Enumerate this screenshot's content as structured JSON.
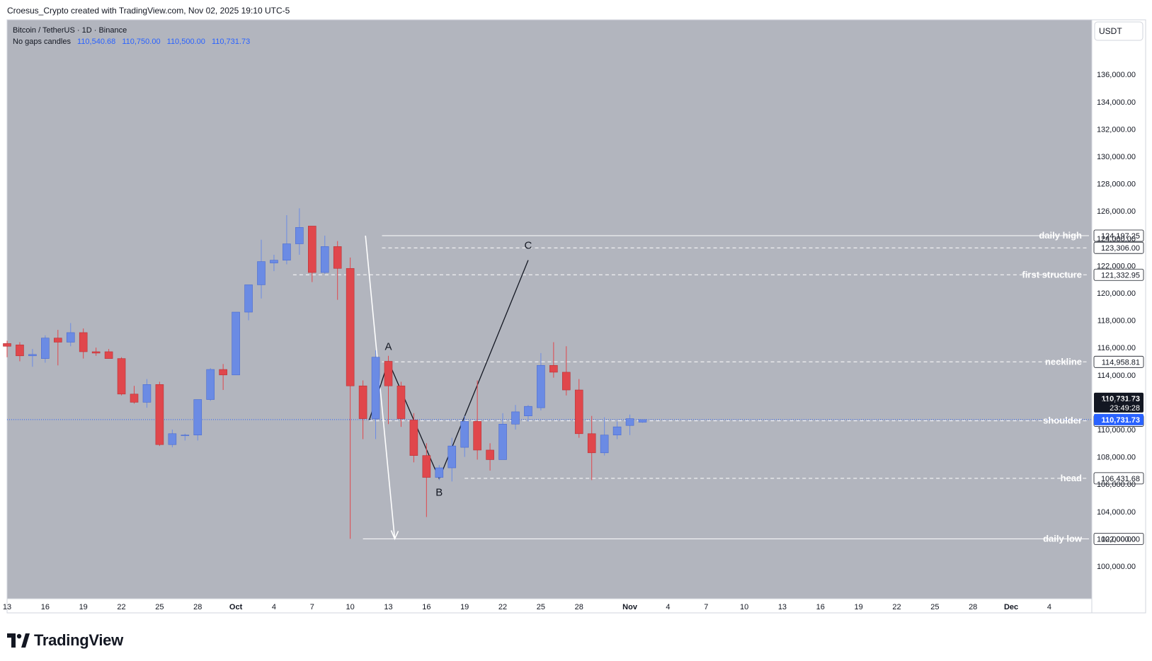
{
  "header": {
    "attribution": "Croesus_Crypto created with TradingView.com, Nov 02, 2025 19:10 UTC-5"
  },
  "legend": {
    "symbol": "Bitcoin / TetherUS · 1D · Binance",
    "candle_type": "No gaps candles",
    "ohlc": [
      "110,540.68",
      "110,750.00",
      "110,500.00",
      "110,731.73"
    ]
  },
  "price_axis": {
    "currency": "USDT",
    "ticks": [
      "100,000.00",
      "102,000.00",
      "104,000.00",
      "106,000.00",
      "108,000.00",
      "110,000.00",
      "112,000.00",
      "114,000.00",
      "116,000.00",
      "118,000.00",
      "120,000.00",
      "122,000.00",
      "124,000.00",
      "126,000.00",
      "128,000.00",
      "130,000.00",
      "132,000.00",
      "134,000.00",
      "136,000.00"
    ],
    "current_price": "110,731.73",
    "countdown": "23:49:28"
  },
  "time_axis": {
    "ticks": [
      "13",
      "16",
      "19",
      "22",
      "25",
      "28",
      "Oct",
      "4",
      "7",
      "10",
      "13",
      "16",
      "19",
      "22",
      "25",
      "28",
      "Nov",
      "4",
      "7",
      "10",
      "13",
      "16",
      "19",
      "22",
      "25",
      "28",
      "Dec",
      "4"
    ]
  },
  "branding": {
    "name": "TradingView"
  },
  "colors": {
    "background": "#b2b5be",
    "up": "#6b8be4",
    "down": "#e0474c",
    "price_line": "#2962ff"
  },
  "chart_data": {
    "type": "candlestick",
    "title": "Bitcoin / TetherUS · 1D · Binance",
    "ylim": [
      98000,
      138000
    ],
    "start_date": "2025-09-13",
    "candles": [
      {
        "o": 116300,
        "h": 116500,
        "l": 115300,
        "c": 116100
      },
      {
        "o": 116200,
        "h": 116400,
        "l": 115000,
        "c": 115400
      },
      {
        "o": 115400,
        "h": 115900,
        "l": 114600,
        "c": 115500
      },
      {
        "o": 115200,
        "h": 116900,
        "l": 114900,
        "c": 116700
      },
      {
        "o": 116700,
        "h": 117300,
        "l": 114700,
        "c": 116400
      },
      {
        "o": 116400,
        "h": 117800,
        "l": 116100,
        "c": 117100
      },
      {
        "o": 117100,
        "h": 117400,
        "l": 115200,
        "c": 115700
      },
      {
        "o": 115700,
        "h": 116000,
        "l": 115400,
        "c": 115600
      },
      {
        "o": 115700,
        "h": 115900,
        "l": 115200,
        "c": 115200
      },
      {
        "o": 115200,
        "h": 115300,
        "l": 112500,
        "c": 112600
      },
      {
        "o": 112600,
        "h": 113200,
        "l": 111900,
        "c": 112000
      },
      {
        "o": 112000,
        "h": 113700,
        "l": 111600,
        "c": 113300
      },
      {
        "o": 113300,
        "h": 113500,
        "l": 108800,
        "c": 108900
      },
      {
        "o": 108900,
        "h": 110000,
        "l": 108700,
        "c": 109700
      },
      {
        "o": 109600,
        "h": 109700,
        "l": 109200,
        "c": 109600
      },
      {
        "o": 109600,
        "h": 112200,
        "l": 109200,
        "c": 112200
      },
      {
        "o": 112200,
        "h": 114500,
        "l": 112100,
        "c": 114400
      },
      {
        "o": 114400,
        "h": 114800,
        "l": 112900,
        "c": 114000
      },
      {
        "o": 114000,
        "h": 118600,
        "l": 114000,
        "c": 118600
      },
      {
        "o": 118600,
        "h": 120200,
        "l": 118000,
        "c": 120600
      },
      {
        "o": 120600,
        "h": 123900,
        "l": 119600,
        "c": 122300
      },
      {
        "o": 122200,
        "h": 122800,
        "l": 121600,
        "c": 122400
      },
      {
        "o": 122400,
        "h": 125700,
        "l": 122100,
        "c": 123600
      },
      {
        "o": 123600,
        "h": 126200,
        "l": 122800,
        "c": 124800
      },
      {
        "o": 124900,
        "h": 124900,
        "l": 120800,
        "c": 121500
      },
      {
        "o": 121500,
        "h": 124200,
        "l": 121400,
        "c": 123400
      },
      {
        "o": 123400,
        "h": 123800,
        "l": 119500,
        "c": 121800
      },
      {
        "o": 121800,
        "h": 122600,
        "l": 102000,
        "c": 113200
      },
      {
        "o": 113200,
        "h": 113600,
        "l": 109300,
        "c": 110800
      },
      {
        "o": 110800,
        "h": 115800,
        "l": 109300,
        "c": 115300
      },
      {
        "o": 115000,
        "h": 115400,
        "l": 110400,
        "c": 113200
      },
      {
        "o": 113200,
        "h": 113500,
        "l": 110200,
        "c": 110800
      },
      {
        "o": 110700,
        "h": 111200,
        "l": 107600,
        "c": 108100
      },
      {
        "o": 108100,
        "h": 109000,
        "l": 103600,
        "c": 106500
      },
      {
        "o": 106500,
        "h": 107400,
        "l": 106300,
        "c": 107200
      },
      {
        "o": 107200,
        "h": 109400,
        "l": 106200,
        "c": 108800
      },
      {
        "o": 108700,
        "h": 111000,
        "l": 108000,
        "c": 110600
      },
      {
        "o": 110600,
        "h": 113600,
        "l": 107800,
        "c": 108500
      },
      {
        "o": 108500,
        "h": 109000,
        "l": 107000,
        "c": 107800
      },
      {
        "o": 107800,
        "h": 111200,
        "l": 107800,
        "c": 110400
      },
      {
        "o": 110400,
        "h": 111800,
        "l": 110000,
        "c": 111300
      },
      {
        "o": 111000,
        "h": 111800,
        "l": 110600,
        "c": 111700
      },
      {
        "o": 111600,
        "h": 115600,
        "l": 111400,
        "c": 114700
      },
      {
        "o": 114700,
        "h": 116400,
        "l": 113800,
        "c": 114200
      },
      {
        "o": 114200,
        "h": 116100,
        "l": 112500,
        "c": 112900
      },
      {
        "o": 112900,
        "h": 113700,
        "l": 109400,
        "c": 109700
      },
      {
        "o": 109700,
        "h": 111000,
        "l": 106300,
        "c": 108300
      },
      {
        "o": 108300,
        "h": 110900,
        "l": 108100,
        "c": 109600
      },
      {
        "o": 109600,
        "h": 110600,
        "l": 109300,
        "c": 110200
      },
      {
        "o": 110300,
        "h": 111100,
        "l": 109600,
        "c": 110800
      },
      {
        "o": 110540.68,
        "h": 110750,
        "l": 110500,
        "c": 110731.73
      }
    ],
    "levels": [
      {
        "label": "daily high",
        "price": 124197.25,
        "style": "solid"
      },
      {
        "label": "",
        "price": 123306.0,
        "style": "dashed"
      },
      {
        "label": "first structure",
        "price": 121332.95,
        "style": "dashed"
      },
      {
        "label": "neckline",
        "price": 114958.81,
        "style": "dashed"
      },
      {
        "label": "shoulder",
        "price": 110644.4,
        "style": "dashed"
      },
      {
        "label": "head",
        "price": 106431.68,
        "style": "dashed"
      },
      {
        "label": "daily low",
        "price": 102000.0,
        "style": "solid"
      }
    ],
    "annotations": [
      {
        "label": "A",
        "day": 30,
        "price": 115000
      },
      {
        "label": "B",
        "day": 34,
        "price": 106400
      },
      {
        "label": "C",
        "day": 41,
        "price": 122400
      }
    ]
  }
}
